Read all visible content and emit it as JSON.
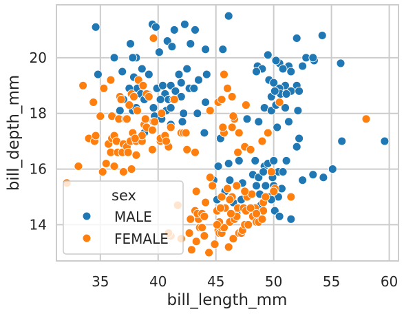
{
  "chart_data": {
    "type": "scatter",
    "title": "",
    "xlabel": "bill_length_mm",
    "ylabel": "bill_depth_mm",
    "xlim": [
      31.2,
      60.8
    ],
    "ylim": [
      12.7,
      21.9
    ],
    "xticks": [
      35,
      40,
      45,
      50,
      55,
      60
    ],
    "yticks": [
      14,
      16,
      18,
      20
    ],
    "grid": true,
    "legend": {
      "title": "sex",
      "placement": "lower-left",
      "entries": [
        {
          "label": "MALE",
          "color": "#1f77b4"
        },
        {
          "label": "FEMALE",
          "color": "#ff7f0e"
        }
      ]
    },
    "series": [
      {
        "name": "MALE",
        "color": "#1f77b4",
        "points": [
          [
            34.6,
            21.1
          ],
          [
            46.1,
            21.5
          ],
          [
            39.5,
            21.2
          ],
          [
            39.8,
            21.1
          ],
          [
            42.3,
            21.2
          ],
          [
            41.4,
            21.0
          ],
          [
            43.2,
            21.0
          ],
          [
            37.6,
            20.5
          ],
          [
            40.8,
            20.6
          ],
          [
            41.2,
            20.4
          ],
          [
            42.8,
            20.5
          ],
          [
            36.2,
            20.0
          ],
          [
            38.1,
            20.0
          ],
          [
            37.8,
            20.0
          ],
          [
            38.6,
            19.6
          ],
          [
            40.1,
            20.2
          ],
          [
            44.1,
            20.3
          ],
          [
            45.6,
            20.3
          ],
          [
            52.0,
            20.7
          ],
          [
            54.2,
            20.8
          ],
          [
            55.8,
            19.8
          ],
          [
            49.5,
            20.1
          ],
          [
            50.5,
            19.8
          ],
          [
            50.2,
            19.9
          ],
          [
            51.3,
            19.7
          ],
          [
            52.5,
            19.7
          ],
          [
            53.5,
            19.9
          ],
          [
            48.6,
            19.7
          ],
          [
            49.0,
            19.6
          ],
          [
            50.8,
            19.6
          ],
          [
            51.5,
            19.5
          ],
          [
            52.8,
            20.0
          ],
          [
            53.4,
            20.0
          ],
          [
            34.8,
            19.4
          ],
          [
            36.9,
            19.5
          ],
          [
            37.9,
            19.3
          ],
          [
            39.2,
            19.4
          ],
          [
            41.8,
            19.4
          ],
          [
            42.5,
            19.6
          ],
          [
            43.5,
            19.2
          ],
          [
            44.2,
            19.4
          ],
          [
            48.5,
            19.5
          ],
          [
            49.6,
            19.2
          ],
          [
            50.0,
            19.1
          ],
          [
            51.0,
            19.0
          ],
          [
            52.0,
            19.0
          ],
          [
            50.5,
            18.9
          ],
          [
            50.6,
            18.7
          ],
          [
            51.5,
            18.8
          ],
          [
            52.2,
            18.8
          ],
          [
            49.8,
            18.6
          ],
          [
            50.1,
            18.8
          ],
          [
            51.1,
            18.7
          ],
          [
            38.2,
            18.9
          ],
          [
            39.9,
            18.9
          ],
          [
            40.4,
            19.0
          ],
          [
            41.1,
            19.0
          ],
          [
            42.0,
            19.1
          ],
          [
            37.5,
            18.9
          ],
          [
            38.5,
            18.7
          ],
          [
            39.1,
            18.7
          ],
          [
            40.6,
            18.7
          ],
          [
            41.5,
            18.8
          ],
          [
            42.7,
            18.9
          ],
          [
            43.1,
            18.9
          ],
          [
            37.0,
            18.5
          ],
          [
            38.8,
            18.5
          ],
          [
            40.2,
            18.5
          ],
          [
            40.9,
            18.5
          ],
          [
            41.3,
            18.5
          ],
          [
            42.0,
            18.6
          ],
          [
            44.1,
            18.4
          ],
          [
            36.7,
            18.1
          ],
          [
            37.8,
            18.1
          ],
          [
            38.1,
            18.2
          ],
          [
            39.6,
            18.2
          ],
          [
            40.7,
            18.1
          ],
          [
            41.1,
            18.2
          ],
          [
            42.2,
            18.0
          ],
          [
            43.4,
            18.0
          ],
          [
            37.2,
            17.8
          ],
          [
            39.7,
            17.9
          ],
          [
            40.3,
            17.8
          ],
          [
            41.1,
            17.6
          ],
          [
            42.1,
            17.7
          ],
          [
            44.0,
            17.3
          ],
          [
            45.4,
            17.1
          ],
          [
            38.8,
            17.3
          ],
          [
            40.5,
            17.1
          ],
          [
            49.2,
            18.2
          ],
          [
            49.8,
            18.1
          ],
          [
            50.2,
            18.3
          ],
          [
            51.0,
            18.2
          ],
          [
            52.1,
            18.1
          ],
          [
            47.7,
            17.8
          ],
          [
            48.7,
            17.7
          ],
          [
            50.3,
            17.5
          ],
          [
            51.3,
            17.7
          ],
          [
            52.2,
            17.1
          ],
          [
            52.0,
            16.8
          ],
          [
            55.9,
            17.0
          ],
          [
            59.6,
            17.0
          ],
          [
            45.2,
            16.1
          ],
          [
            46.1,
            16.2
          ],
          [
            47.0,
            16.3
          ],
          [
            48.4,
            16.3
          ],
          [
            49.2,
            16.1
          ],
          [
            49.5,
            16.2
          ],
          [
            50.0,
            16.3
          ],
          [
            50.4,
            15.9
          ],
          [
            51.1,
            16.3
          ],
          [
            48.2,
            15.8
          ],
          [
            48.7,
            15.7
          ],
          [
            49.1,
            15.9
          ],
          [
            49.9,
            15.7
          ],
          [
            50.8,
            15.9
          ],
          [
            55.1,
            16.0
          ],
          [
            46.2,
            15.6
          ],
          [
            47.3,
            15.5
          ],
          [
            48.5,
            15.4
          ],
          [
            49.3,
            15.4
          ],
          [
            50.0,
            15.4
          ],
          [
            50.7,
            15.3
          ],
          [
            52.5,
            15.6
          ],
          [
            53.4,
            15.8
          ],
          [
            54.3,
            15.7
          ],
          [
            45.8,
            15.2
          ],
          [
            47.5,
            15.0
          ],
          [
            48.8,
            15.1
          ],
          [
            49.6,
            15.0
          ],
          [
            50.4,
            15.0
          ],
          [
            45.1,
            14.9
          ],
          [
            46.5,
            14.8
          ],
          [
            47.2,
            14.9
          ],
          [
            48.9,
            14.7
          ],
          [
            49.8,
            14.9
          ],
          [
            50.1,
            14.5
          ],
          [
            46.8,
            14.4
          ],
          [
            48.4,
            14.3
          ],
          [
            50.5,
            14.3
          ],
          [
            51.5,
            14.2
          ],
          [
            44.8,
            15.6
          ]
        ]
      },
      {
        "name": "FEMALE",
        "color": "#ff7f0e",
        "points": [
          [
            32.1,
            15.5
          ],
          [
            33.1,
            16.1
          ],
          [
            33.5,
            19.0
          ],
          [
            34.0,
            17.1
          ],
          [
            34.4,
            18.4
          ],
          [
            34.5,
            17.0
          ],
          [
            34.6,
            17.2
          ],
          [
            35.0,
            17.9
          ],
          [
            35.2,
            15.9
          ],
          [
            35.3,
            18.9
          ],
          [
            35.5,
            16.2
          ],
          [
            35.7,
            16.9
          ],
          [
            35.9,
            19.2
          ],
          [
            35.9,
            16.6
          ],
          [
            36.0,
            17.1
          ],
          [
            36.0,
            17.9
          ],
          [
            36.2,
            16.1
          ],
          [
            36.2,
            17.2
          ],
          [
            36.4,
            17.0
          ],
          [
            36.5,
            16.6
          ],
          [
            36.6,
            17.8
          ],
          [
            36.7,
            18.6
          ],
          [
            36.8,
            18.5
          ],
          [
            36.9,
            16.6
          ],
          [
            37.0,
            16.9
          ],
          [
            37.2,
            17.8
          ],
          [
            37.3,
            16.8
          ],
          [
            37.3,
            17.8
          ],
          [
            37.5,
            18.3
          ],
          [
            37.6,
            17.0
          ],
          [
            37.7,
            16.0
          ],
          [
            37.7,
            18.7
          ],
          [
            37.8,
            17.3
          ],
          [
            37.9,
            18.6
          ],
          [
            38.1,
            16.5
          ],
          [
            38.1,
            17.0
          ],
          [
            38.2,
            18.1
          ],
          [
            38.3,
            19.2
          ],
          [
            38.6,
            17.0
          ],
          [
            38.6,
            17.2
          ],
          [
            38.7,
            19.0
          ],
          [
            38.8,
            17.6
          ],
          [
            38.9,
            17.8
          ],
          [
            39.0,
            17.5
          ],
          [
            39.0,
            18.7
          ],
          [
            39.2,
            18.6
          ],
          [
            39.5,
            16.7
          ],
          [
            39.5,
            17.4
          ],
          [
            39.6,
            17.7
          ],
          [
            39.7,
            17.7
          ],
          [
            40.2,
            17.0
          ],
          [
            40.2,
            17.1
          ],
          [
            40.3,
            18.0
          ],
          [
            40.6,
            17.2
          ],
          [
            40.9,
            16.8
          ],
          [
            41.1,
            17.5
          ],
          [
            41.4,
            18.5
          ],
          [
            42.0,
            17.3
          ],
          [
            42.2,
            17.3
          ],
          [
            42.4,
            17.3
          ],
          [
            42.5,
            16.7
          ],
          [
            39.6,
            20.7
          ],
          [
            40.7,
            17.0
          ],
          [
            37.0,
            15.9
          ],
          [
            37.4,
            16.6
          ],
          [
            38.0,
            17.1
          ],
          [
            44.5,
            18.1
          ],
          [
            45.2,
            18.4
          ],
          [
            45.5,
            18.5
          ],
          [
            45.7,
            19.4
          ],
          [
            46.0,
            18.9
          ],
          [
            46.4,
            18.6
          ],
          [
            46.6,
            17.8
          ],
          [
            46.9,
            16.6
          ],
          [
            47.0,
            17.3
          ],
          [
            47.5,
            16.8
          ],
          [
            48.0,
            16.7
          ],
          [
            49.0,
            17.0
          ],
          [
            49.5,
            17.3
          ],
          [
            50.5,
            18.4
          ],
          [
            58.0,
            17.8
          ],
          [
            43.2,
            16.6
          ],
          [
            45.7,
            17.3
          ],
          [
            46.4,
            17.5
          ],
          [
            47.6,
            18.3
          ],
          [
            46.5,
            17.9
          ],
          [
            45.6,
            17.5
          ],
          [
            43.2,
            14.5
          ],
          [
            43.3,
            13.4
          ],
          [
            43.5,
            14.2
          ],
          [
            43.6,
            13.9
          ],
          [
            43.8,
            13.9
          ],
          [
            44.0,
            13.6
          ],
          [
            44.1,
            14.8
          ],
          [
            44.9,
            13.3
          ],
          [
            45.1,
            14.5
          ],
          [
            45.2,
            13.8
          ],
          [
            45.3,
            13.7
          ],
          [
            45.5,
            13.7
          ],
          [
            45.5,
            13.9
          ],
          [
            45.7,
            13.9
          ],
          [
            45.8,
            14.6
          ],
          [
            46.0,
            15.3
          ],
          [
            46.1,
            13.2
          ],
          [
            46.2,
            14.1
          ],
          [
            46.4,
            15.0
          ],
          [
            46.5,
            13.5
          ],
          [
            46.6,
            14.2
          ],
          [
            46.8,
            15.4
          ],
          [
            46.9,
            14.6
          ],
          [
            47.0,
            13.7
          ],
          [
            47.2,
            13.7
          ],
          [
            47.3,
            13.8
          ],
          [
            47.4,
            14.6
          ],
          [
            47.5,
            14.0
          ],
          [
            47.6,
            14.5
          ],
          [
            47.7,
            15.0
          ],
          [
            48.1,
            15.1
          ],
          [
            48.2,
            14.3
          ],
          [
            48.4,
            14.6
          ],
          [
            48.5,
            14.1
          ],
          [
            48.7,
            14.1
          ],
          [
            49.1,
            14.5
          ],
          [
            49.1,
            14.8
          ],
          [
            49.8,
            15.9
          ],
          [
            45.5,
            15.0
          ],
          [
            45.3,
            14.1
          ],
          [
            46.2,
            14.9
          ],
          [
            46.8,
            14.3
          ],
          [
            47.5,
            15.2
          ],
          [
            48.0,
            14.6
          ],
          [
            49.3,
            15.0
          ],
          [
            50.1,
            15.3
          ],
          [
            42.8,
            14.2
          ],
          [
            42.7,
            13.7
          ],
          [
            42.9,
            13.1
          ],
          [
            43.4,
            14.4
          ],
          [
            43.8,
            14.4
          ],
          [
            44.0,
            14.3
          ],
          [
            44.4,
            13.0
          ],
          [
            41.7,
            14.7
          ],
          [
            41.1,
            13.6
          ],
          [
            40.9,
            13.7
          ],
          [
            42.0,
            13.5
          ],
          [
            43.3,
            15.2
          ],
          [
            44.7,
            15.4
          ],
          [
            45.1,
            14.0
          ],
          [
            46.3,
            14.4
          ],
          [
            47.8,
            14.0
          ],
          [
            48.5,
            14.4
          ],
          [
            49.0,
            14.2
          ],
          [
            50.0,
            15.2
          ],
          [
            51.5,
            15.0
          ],
          [
            44.5,
            15.7
          ],
          [
            45.4,
            14.6
          ]
        ]
      }
    ]
  }
}
